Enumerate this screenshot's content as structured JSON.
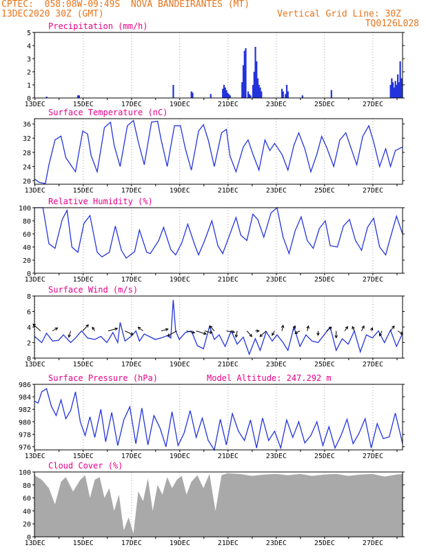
{
  "header": {
    "line1": "CPTEC:  058:08W-09:49S  NOVA BANDEIRANTES (MT)",
    "line2": "13DEC2020 30Z (GMT)",
    "grid_note": "Vertical Grid Line: 30Z",
    "code": "TQ0126L028"
  },
  "colors": {
    "line": "#2233dd",
    "bars": "#2233dd",
    "cloud": "#a9a9a9",
    "title": "#e8008a",
    "header": "#e8731a"
  },
  "chart_data": [
    {
      "type": "bar",
      "title": "Precipitation (mm/h)",
      "ylim": [
        0,
        5
      ],
      "yticks": [
        0,
        1,
        2,
        3,
        4,
        5
      ],
      "xticks": [
        "13DEC",
        "15DEC",
        "17DEC",
        "19DEC",
        "21DEC",
        "23DEC",
        "25DEC",
        "27DEC"
      ],
      "x_unit": "day offset from 13DEC",
      "x": [
        0.5,
        1.8,
        1.85,
        5.75,
        6.5,
        6.55,
        7.3,
        7.8,
        7.85,
        7.9,
        7.95,
        8.0,
        8.05,
        8.1,
        8.6,
        8.65,
        8.7,
        8.75,
        8.85,
        8.9,
        8.95,
        9.05,
        9.1,
        9.15,
        9.2,
        9.25,
        9.3,
        9.35,
        9.4,
        10.25,
        10.3,
        10.4,
        10.45,
        10.5,
        11.1,
        12.3,
        14.75,
        14.8,
        14.85,
        14.9,
        14.95,
        15.0,
        15.05,
        15.1,
        15.15,
        15.2
      ],
      "values": [
        0.1,
        0.2,
        0.2,
        1.0,
        0.5,
        0.4,
        0.3,
        0.7,
        1.0,
        0.8,
        0.6,
        0.4,
        0.3,
        0.2,
        1.2,
        2.5,
        3.6,
        3.8,
        0.5,
        0.3,
        0.2,
        1.0,
        2.0,
        3.9,
        2.8,
        1.5,
        1.0,
        0.8,
        0.5,
        0.7,
        0.5,
        0.3,
        1.0,
        0.5,
        0.2,
        0.6,
        1.0,
        1.5,
        1.2,
        0.8,
        1.3,
        1.0,
        1.8,
        1.2,
        2.8,
        1.5
      ]
    },
    {
      "type": "line",
      "title": "Surface Temperature (nC)",
      "ylim": [
        19,
        37.5
      ],
      "yticks": [
        20,
        24,
        28,
        32,
        36
      ],
      "xticks": [
        "13DEC",
        "15DEC",
        "17DEC",
        "19DEC",
        "21DEC",
        "23DEC",
        "25DEC",
        "27DEC"
      ],
      "x": [
        0,
        0.2,
        0.45,
        0.6,
        0.85,
        1.1,
        1.3,
        1.45,
        1.7,
        2.0,
        2.2,
        2.35,
        2.6,
        2.9,
        3.15,
        3.3,
        3.55,
        3.85,
        4.1,
        4.3,
        4.55,
        4.85,
        5.1,
        5.25,
        5.5,
        5.8,
        6.05,
        6.25,
        6.5,
        6.8,
        7.0,
        7.2,
        7.45,
        7.75,
        7.95,
        8.1,
        8.35,
        8.65,
        8.85,
        9.05,
        9.3,
        9.55,
        9.75,
        9.95,
        10.25,
        10.5,
        10.75,
        10.95,
        11.2,
        11.45,
        11.7,
        11.9,
        12.1,
        12.4,
        12.65,
        12.9,
        13.1,
        13.35,
        13.6,
        13.85,
        14.05,
        14.3,
        14.55,
        14.75,
        14.95,
        15.25
      ],
      "values": [
        20.5,
        19.5,
        19.2,
        24.5,
        31.5,
        32.6,
        26.5,
        25.0,
        22.5,
        34.0,
        33.2,
        27.0,
        22.5,
        35.0,
        36.5,
        30.0,
        24.0,
        35.5,
        37.0,
        31.0,
        24.5,
        36.5,
        36.8,
        31.5,
        24.0,
        35.5,
        35.5,
        29.0,
        23.0,
        34.0,
        35.8,
        31.5,
        24.0,
        33.5,
        34.5,
        27.0,
        22.5,
        29.5,
        31.5,
        27.5,
        23.0,
        31.5,
        28.5,
        30.5,
        27.5,
        23.0,
        30.0,
        33.5,
        29.0,
        22.5,
        27.5,
        32.5,
        29.5,
        24.0,
        31.5,
        33.5,
        29.5,
        24.5,
        32.5,
        35.5,
        31.0,
        24.0,
        29.0,
        24.0,
        28.5,
        29.5
      ]
    },
    {
      "type": "line",
      "title": "Relative Humidity (%)",
      "ylim": [
        0,
        100
      ],
      "yticks": [
        0,
        20,
        40,
        60,
        80,
        100
      ],
      "xticks": [
        "13DEC",
        "15DEC",
        "17DEC",
        "19DEC",
        "21DEC",
        "23DEC",
        "25DEC",
        "27DEC"
      ],
      "x": [
        0,
        0.35,
        0.6,
        0.85,
        1.15,
        1.35,
        1.55,
        1.8,
        2.05,
        2.3,
        2.6,
        2.8,
        3.1,
        3.35,
        3.6,
        3.8,
        4.15,
        4.35,
        4.65,
        4.8,
        5.15,
        5.35,
        5.65,
        5.85,
        6.1,
        6.35,
        6.65,
        6.8,
        7.05,
        7.35,
        7.6,
        7.8,
        8.05,
        8.35,
        8.55,
        8.8,
        9.05,
        9.25,
        9.5,
        9.8,
        10.05,
        10.3,
        10.55,
        10.8,
        11.05,
        11.3,
        11.55,
        11.8,
        12.05,
        12.25,
        12.55,
        12.8,
        13.05,
        13.3,
        13.55,
        13.8,
        14.05,
        14.3,
        14.55,
        14.75,
        15.0,
        15.25
      ],
      "values": [
        100,
        100,
        45,
        38,
        82,
        96,
        40,
        32,
        76,
        88,
        32,
        25,
        32,
        72,
        35,
        23,
        33,
        66,
        32,
        30,
        50,
        70,
        36,
        28,
        46,
        75,
        42,
        28,
        50,
        80,
        42,
        30,
        55,
        85,
        58,
        50,
        90,
        82,
        55,
        92,
        100,
        55,
        30,
        65,
        86,
        50,
        38,
        68,
        80,
        42,
        40,
        72,
        82,
        50,
        35,
        70,
        84,
        40,
        28,
        55,
        87,
        60
      ]
    },
    {
      "type": "line",
      "title": "Surface Wind (m/s)",
      "ylim": [
        0,
        8
      ],
      "yticks": [
        0,
        2,
        4,
        6,
        8
      ],
      "xticks": [
        "13DEC",
        "15DEC",
        "17DEC",
        "19DEC",
        "21DEC",
        "23DEC",
        "25DEC",
        "27DEC"
      ],
      "x": [
        0,
        0.3,
        0.5,
        0.75,
        1.0,
        1.2,
        1.5,
        1.7,
        1.95,
        2.2,
        2.5,
        2.75,
        3.0,
        3.25,
        3.45,
        3.55,
        3.75,
        4.0,
        4.2,
        4.35,
        4.55,
        4.75,
        5.0,
        5.25,
        5.5,
        5.65,
        5.75,
        5.85,
        6.0,
        6.25,
        6.5,
        6.75,
        7.0,
        7.25,
        7.45,
        7.65,
        7.9,
        8.15,
        8.4,
        8.65,
        8.9,
        9.15,
        9.35,
        9.6,
        9.85,
        10.05,
        10.3,
        10.5,
        10.75,
        11.0,
        11.25,
        11.5,
        11.75,
        12.0,
        12.25,
        12.5,
        12.75,
        13.0,
        13.25,
        13.5,
        13.75,
        14.0,
        14.25,
        14.5,
        14.75,
        15.0,
        15.25
      ],
      "values": [
        2.8,
        2.0,
        3.2,
        2.2,
        2.3,
        3.0,
        2.0,
        2.6,
        3.5,
        2.6,
        2.4,
        2.8,
        2.0,
        3.3,
        2.0,
        4.6,
        2.2,
        2.8,
        3.5,
        2.2,
        3.1,
        2.8,
        2.4,
        2.6,
        2.9,
        2.6,
        7.5,
        3.5,
        2.4,
        3.3,
        3.5,
        1.6,
        1.2,
        4.1,
        2.4,
        3.0,
        1.5,
        3.5,
        1.8,
        2.7,
        0.5,
        2.5,
        1.0,
        3.4,
        2.2,
        3.0,
        2.0,
        1.0,
        4.0,
        1.5,
        3.0,
        2.2,
        2.0,
        3.0,
        4.0,
        1.0,
        2.5,
        1.8,
        3.5,
        0.8,
        3.0,
        2.6,
        3.5,
        2.0,
        3.6,
        1.5,
        3.2
      ],
      "arrow_x": [
        0.25,
        0.75,
        1.5,
        2.0,
        2.5,
        3.05,
        3.75,
        4.5,
        5.25,
        5.9,
        6.3,
        6.7,
        7.05,
        7.45,
        7.95,
        8.4,
        8.8,
        9.15,
        9.6,
        9.95,
        10.25,
        10.7,
        11.0,
        11.3,
        11.75,
        12.1,
        12.5,
        12.85,
        13.25,
        13.55,
        13.95,
        14.4,
        14.75,
        15.05
      ],
      "arrow_u": [
        -1.2,
        0.8,
        -0.3,
        0.9,
        -0.4,
        1.5,
        1.3,
        -0.8,
        1.1,
        -1.5,
        1.3,
        1.6,
        1.2,
        -0.7,
        1.3,
        -0.2,
        0.8,
        0.6,
        -1.0,
        -0.4,
        0.2,
        0.4,
        -0.8,
        0.2,
        0.0,
        0.8,
        0.0,
        0.5,
        -0.3,
        0.4,
        0.2,
        -0.4,
        0.6,
        0.8
      ],
      "arrow_v": [
        1.1,
        0.5,
        -1.0,
        1.0,
        0.6,
        0.4,
        -0.6,
        0.6,
        0.3,
        -0.8,
        -0.3,
        -0.5,
        -0.3,
        0.8,
        -0.2,
        -1.0,
        -0.9,
        0.0,
        -0.9,
        -0.7,
        0.9,
        0.8,
        -0.4,
        0.8,
        -0.7,
        0.6,
        -1.1,
        0.7,
        0.7,
        0.8,
        0.5,
        -0.8,
        0.8,
        -0.5
      ]
    },
    {
      "type": "line",
      "title": "Surface Pressure (hPa)",
      "annotation": "Model Altitude: 247.292 m",
      "ylim": [
        975.5,
        986
      ],
      "yticks": [
        976,
        978,
        980,
        982,
        984,
        986
      ],
      "xticks": [
        "13DEC",
        "15DEC",
        "17DEC",
        "19DEC",
        "21DEC",
        "23DEC",
        "25DEC",
        "27DEC"
      ],
      "x": [
        0,
        0.15,
        0.3,
        0.5,
        0.7,
        0.9,
        1.1,
        1.3,
        1.5,
        1.7,
        1.9,
        2.1,
        2.3,
        2.5,
        2.75,
        2.95,
        3.2,
        3.45,
        3.7,
        3.95,
        4.2,
        4.45,
        4.7,
        4.95,
        5.2,
        5.45,
        5.7,
        5.95,
        6.2,
        6.45,
        6.7,
        6.95,
        7.2,
        7.45,
        7.7,
        7.95,
        8.2,
        8.45,
        8.7,
        8.95,
        9.2,
        9.45,
        9.7,
        9.95,
        10.2,
        10.45,
        10.7,
        10.95,
        11.2,
        11.45,
        11.7,
        11.95,
        12.2,
        12.45,
        12.7,
        12.95,
        13.2,
        13.45,
        13.7,
        13.95,
        14.2,
        14.45,
        14.7,
        14.95,
        15.25
      ],
      "values": [
        983.3,
        983.0,
        984.8,
        985.3,
        982.5,
        981.0,
        983.5,
        980.5,
        981.8,
        984.8,
        980.0,
        977.8,
        980.8,
        977.5,
        982.0,
        976.8,
        981.5,
        976.2,
        980.3,
        982.4,
        976.5,
        982.2,
        976.3,
        981.0,
        979.0,
        976.0,
        981.6,
        976.2,
        978.2,
        981.8,
        977.5,
        980.6,
        977.0,
        975.5,
        980.4,
        976.3,
        981.3,
        978.5,
        977.0,
        980.3,
        975.8,
        980.6,
        977.0,
        978.5,
        975.8,
        980.3,
        977.5,
        980.0,
        976.6,
        977.8,
        980.0,
        976.2,
        979.2,
        975.8,
        977.8,
        980.4,
        976.5,
        978.2,
        980.5,
        975.8,
        979.7,
        977.3,
        977.6,
        981.4,
        976.5
      ]
    },
    {
      "type": "area",
      "title": "Cloud Cover (%)",
      "ylim": [
        0,
        100
      ],
      "yticks": [
        0,
        20,
        40,
        60,
        80,
        100
      ],
      "xticks": [
        "13DEC",
        "15DEC",
        "17DEC",
        "19DEC",
        "21DEC",
        "23DEC",
        "25DEC",
        "27DEC"
      ],
      "x": [
        0,
        0.3,
        0.6,
        0.85,
        1.1,
        1.3,
        1.6,
        1.9,
        2.1,
        2.3,
        2.5,
        2.7,
        2.9,
        3.1,
        3.3,
        3.5,
        3.7,
        3.9,
        4.1,
        4.3,
        4.5,
        4.7,
        4.9,
        5.1,
        5.3,
        5.5,
        5.7,
        5.9,
        6.1,
        6.3,
        6.5,
        6.75,
        7.0,
        7.25,
        7.5,
        7.75,
        8.0,
        8.5,
        9.0,
        9.5,
        10.0,
        10.5,
        11.0,
        11.5,
        12.0,
        12.5,
        13.0,
        13.5,
        14.0,
        14.5,
        15.0,
        15.25
      ],
      "values": [
        95,
        88,
        75,
        50,
        85,
        92,
        70,
        88,
        95,
        60,
        88,
        92,
        60,
        75,
        40,
        65,
        10,
        30,
        5,
        70,
        55,
        90,
        40,
        80,
        65,
        92,
        75,
        88,
        94,
        65,
        85,
        95,
        75,
        97,
        40,
        95,
        98,
        97,
        94,
        96,
        97,
        95,
        97,
        94,
        96,
        97,
        94,
        96,
        97,
        93,
        96,
        97
      ]
    }
  ]
}
